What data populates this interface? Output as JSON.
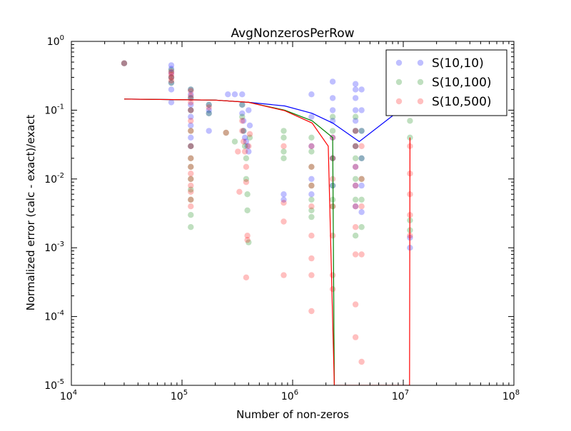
{
  "chart_data": {
    "type": "scatter",
    "title": "AvgNonzerosPerRow",
    "xlabel": "Number of non-zeros",
    "ylabel": "Normalized error (calc - exact)/exact",
    "xscale": "log",
    "yscale": "log",
    "xlim": [
      10000,
      100000000
    ],
    "ylim": [
      1e-05,
      1
    ],
    "grid": false,
    "legend_position": "top-right",
    "x_ticks": [
      {
        "value": 10000,
        "base": "10",
        "exp": "4"
      },
      {
        "value": 100000,
        "base": "10",
        "exp": "5"
      },
      {
        "value": 1000000,
        "base": "10",
        "exp": "6"
      },
      {
        "value": 10000000,
        "base": "10",
        "exp": "7"
      },
      {
        "value": 100000000,
        "base": "10",
        "exp": "8"
      }
    ],
    "y_ticks": [
      {
        "value": 1e-05,
        "base": "10",
        "exp": "-5"
      },
      {
        "value": 0.0001,
        "base": "10",
        "exp": "-4"
      },
      {
        "value": 0.001,
        "base": "10",
        "exp": "-3"
      },
      {
        "value": 0.01,
        "base": "10",
        "exp": "-2"
      },
      {
        "value": 0.1,
        "base": "10",
        "exp": "-1"
      },
      {
        "value": 1,
        "base": "10",
        "exp": "0"
      }
    ],
    "series": [
      {
        "name": "S(10,10)",
        "color": "#0000ff",
        "points": [
          [
            30000,
            0.48
          ],
          [
            80000,
            0.45
          ],
          [
            80000,
            0.4
          ],
          [
            80000,
            0.35
          ],
          [
            80000,
            0.3
          ],
          [
            80000,
            0.25
          ],
          [
            80000,
            0.2
          ],
          [
            80000,
            0.13
          ],
          [
            120000,
            0.2
          ],
          [
            120000,
            0.17
          ],
          [
            120000,
            0.15
          ],
          [
            120000,
            0.12
          ],
          [
            120000,
            0.1
          ],
          [
            120000,
            0.08
          ],
          [
            120000,
            0.06
          ],
          [
            120000,
            0.04
          ],
          [
            120000,
            0.03
          ],
          [
            175000,
            0.12
          ],
          [
            175000,
            0.1
          ],
          [
            175000,
            0.09
          ],
          [
            175000,
            0.05
          ],
          [
            260000,
            0.17
          ],
          [
            300000,
            0.17
          ],
          [
            350000,
            0.17
          ],
          [
            350000,
            0.12
          ],
          [
            350000,
            0.09
          ],
          [
            360000,
            0.07
          ],
          [
            360000,
            0.05
          ],
          [
            370000,
            0.04
          ],
          [
            380000,
            0.035
          ],
          [
            390000,
            0.03
          ],
          [
            400000,
            0.025
          ],
          [
            400000,
            0.1
          ],
          [
            410000,
            0.06
          ],
          [
            830000,
            0.006
          ],
          [
            830000,
            0.005
          ],
          [
            1480000,
            0.17
          ],
          [
            1480000,
            0.08
          ],
          [
            1480000,
            0.03
          ],
          [
            1480000,
            0.01
          ],
          [
            1480000,
            0.006
          ],
          [
            2300000,
            0.26
          ],
          [
            2300000,
            0.15
          ],
          [
            2300000,
            0.1
          ],
          [
            2300000,
            0.07
          ],
          [
            2300000,
            0.04
          ],
          [
            2300000,
            0.02
          ],
          [
            2300000,
            0.008
          ],
          [
            3700000,
            0.24
          ],
          [
            3700000,
            0.2
          ],
          [
            3700000,
            0.15
          ],
          [
            3700000,
            0.1
          ],
          [
            3700000,
            0.07
          ],
          [
            3700000,
            0.05
          ],
          [
            3700000,
            0.03
          ],
          [
            3700000,
            0.015
          ],
          [
            3700000,
            0.008
          ],
          [
            3700000,
            0.004
          ],
          [
            4200000,
            0.2
          ],
          [
            4200000,
            0.1
          ],
          [
            4200000,
            0.05
          ],
          [
            4200000,
            0.02
          ],
          [
            4200000,
            0.008
          ],
          [
            4200000,
            0.0033
          ],
          [
            11500000,
            0.2
          ],
          [
            11500000,
            0.15
          ],
          [
            11500000,
            0.1
          ],
          [
            11500000,
            0.0014
          ],
          [
            11500000,
            0.001
          ]
        ],
        "line": [
          [
            30000,
            0.145
          ],
          [
            200000,
            0.14
          ],
          [
            400000,
            0.13
          ],
          [
            850000,
            0.115
          ],
          [
            1500000,
            0.09
          ],
          [
            2300000,
            0.065
          ],
          [
            4000000,
            0.035
          ],
          [
            11500000,
            0.13
          ]
        ]
      },
      {
        "name": "S(10,100)",
        "color": "#008000",
        "points": [
          [
            30000,
            0.48
          ],
          [
            80000,
            0.38
          ],
          [
            80000,
            0.3
          ],
          [
            80000,
            0.25
          ],
          [
            120000,
            0.2
          ],
          [
            120000,
            0.15
          ],
          [
            120000,
            0.1
          ],
          [
            120000,
            0.05
          ],
          [
            120000,
            0.03
          ],
          [
            120000,
            0.02
          ],
          [
            120000,
            0.015
          ],
          [
            120000,
            0.01
          ],
          [
            120000,
            0.007
          ],
          [
            120000,
            0.005
          ],
          [
            120000,
            0.003
          ],
          [
            120000,
            0.002
          ],
          [
            175000,
            0.12
          ],
          [
            175000,
            0.09
          ],
          [
            250000,
            0.047
          ],
          [
            300000,
            0.035
          ],
          [
            350000,
            0.12
          ],
          [
            350000,
            0.08
          ],
          [
            360000,
            0.05
          ],
          [
            370000,
            0.03
          ],
          [
            380000,
            0.02
          ],
          [
            380000,
            0.01
          ],
          [
            390000,
            0.006
          ],
          [
            390000,
            0.0035
          ],
          [
            400000,
            0.0012
          ],
          [
            410000,
            0.04
          ],
          [
            830000,
            0.05
          ],
          [
            830000,
            0.04
          ],
          [
            830000,
            0.025
          ],
          [
            830000,
            0.02
          ],
          [
            1480000,
            0.04
          ],
          [
            1480000,
            0.025
          ],
          [
            1480000,
            0.015
          ],
          [
            1480000,
            0.008
          ],
          [
            1480000,
            0.005
          ],
          [
            1480000,
            0.0035
          ],
          [
            1480000,
            0.0028
          ],
          [
            2300000,
            0.08
          ],
          [
            2300000,
            0.05
          ],
          [
            2300000,
            0.02
          ],
          [
            2300000,
            0.008
          ],
          [
            2300000,
            0.005
          ],
          [
            2300000,
            0.004
          ],
          [
            3700000,
            0.08
          ],
          [
            3700000,
            0.05
          ],
          [
            3700000,
            0.03
          ],
          [
            3700000,
            0.02
          ],
          [
            3700000,
            0.01
          ],
          [
            3700000,
            0.005
          ],
          [
            3700000,
            0.0015
          ],
          [
            4200000,
            0.05
          ],
          [
            4200000,
            0.02
          ],
          [
            4200000,
            0.01
          ],
          [
            4200000,
            0.005
          ],
          [
            4200000,
            0.002
          ],
          [
            11500000,
            0.1
          ],
          [
            11500000,
            0.07
          ],
          [
            11500000,
            0.04
          ],
          [
            11500000,
            0.0025
          ],
          [
            11500000,
            0.0018
          ]
        ],
        "line": [
          [
            30000,
            0.145
          ],
          [
            200000,
            0.14
          ],
          [
            400000,
            0.13
          ],
          [
            850000,
            0.1
          ],
          [
            1500000,
            0.07
          ],
          [
            2300000,
            0.04
          ],
          [
            2380000,
            1e-05
          ]
        ]
      },
      {
        "name": "S(10,500)",
        "color": "#ff0000",
        "points": [
          [
            30000,
            0.48
          ],
          [
            80000,
            0.36
          ],
          [
            80000,
            0.33
          ],
          [
            80000,
            0.3
          ],
          [
            80000,
            0.27
          ],
          [
            120000,
            0.19
          ],
          [
            120000,
            0.16
          ],
          [
            120000,
            0.13
          ],
          [
            120000,
            0.1
          ],
          [
            120000,
            0.07
          ],
          [
            120000,
            0.05
          ],
          [
            120000,
            0.03
          ],
          [
            120000,
            0.02
          ],
          [
            120000,
            0.015
          ],
          [
            120000,
            0.012
          ],
          [
            120000,
            0.01
          ],
          [
            120000,
            0.008
          ],
          [
            120000,
            0.0065
          ],
          [
            120000,
            0.005
          ],
          [
            120000,
            0.004
          ],
          [
            175000,
            0.11
          ],
          [
            250000,
            0.047
          ],
          [
            320000,
            0.025
          ],
          [
            330000,
            0.0065
          ],
          [
            350000,
            0.07
          ],
          [
            350000,
            0.05
          ],
          [
            360000,
            0.035
          ],
          [
            370000,
            0.025
          ],
          [
            380000,
            0.015
          ],
          [
            380000,
            0.009
          ],
          [
            390000,
            0.0015
          ],
          [
            390000,
            0.0013
          ],
          [
            380000,
            0.00037
          ],
          [
            400000,
            0.03
          ],
          [
            410000,
            0.045
          ],
          [
            830000,
            0.03
          ],
          [
            830000,
            0.0045
          ],
          [
            830000,
            0.0024
          ],
          [
            830000,
            0.0004
          ],
          [
            1480000,
            0.03
          ],
          [
            1480000,
            0.015
          ],
          [
            1480000,
            0.008
          ],
          [
            1480000,
            0.004
          ],
          [
            1480000,
            0.0015
          ],
          [
            1480000,
            0.0007
          ],
          [
            1480000,
            0.0004
          ],
          [
            1480000,
            0.00012
          ],
          [
            2300000,
            0.04
          ],
          [
            2300000,
            0.02
          ],
          [
            2300000,
            0.01
          ],
          [
            2300000,
            0.004
          ],
          [
            2300000,
            0.0015
          ],
          [
            2300000,
            0.0004
          ],
          [
            2300000,
            0.00025
          ],
          [
            3700000,
            0.05
          ],
          [
            3700000,
            0.03
          ],
          [
            3700000,
            0.015
          ],
          [
            3700000,
            0.008
          ],
          [
            3700000,
            0.004
          ],
          [
            3700000,
            0.002
          ],
          [
            3700000,
            0.0008
          ],
          [
            3700000,
            0.00015
          ],
          [
            3700000,
            5e-05
          ],
          [
            4200000,
            0.03
          ],
          [
            4200000,
            0.01
          ],
          [
            4200000,
            0.004
          ],
          [
            4200000,
            0.0008
          ],
          [
            4200000,
            2.2e-05
          ],
          [
            11500000,
            0.03
          ],
          [
            11500000,
            0.012
          ],
          [
            11500000,
            0.006
          ],
          [
            11500000,
            0.003
          ],
          [
            11500000,
            0.0015
          ]
        ],
        "line": [
          [
            30000,
            0.145
          ],
          [
            200000,
            0.14
          ],
          [
            400000,
            0.13
          ],
          [
            850000,
            0.098
          ],
          [
            1500000,
            0.065
          ],
          [
            2100000,
            0.03
          ],
          [
            2380000,
            1e-05
          ],
          [
            11400000,
            1e-05
          ],
          [
            11500000,
            0.04
          ]
        ]
      }
    ]
  }
}
